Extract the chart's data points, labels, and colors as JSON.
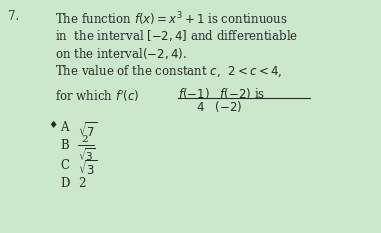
{
  "background_color": "#cce8cc",
  "question_number": "7.",
  "text_color": "#2a2a2a",
  "font_size_main": 8.5,
  "font_size_options": 8.5,
  "lines": [
    "The function $f(x) = x^3 + 1$ is continuous",
    "in  the interval $[-2, 4]$ and differentiable",
    "on the interval$(-2, 4)$.",
    "The value of the constant $c$,  $2 < c < 4$,"
  ],
  "for_which": "for which $f'(c)$",
  "frac_num": "$f(-1)$   $f(-2)$ is",
  "frac_den": "$4$   $(-2)$",
  "bullet": "♦",
  "opt_A_label": "A",
  "opt_A_val": "$\\sqrt{7}$",
  "opt_B_label": "B",
  "opt_B_num": "2",
  "opt_B_den": "$\\sqrt{3}$",
  "opt_C_label": "C",
  "opt_C_val": "$\\sqrt{3}$",
  "opt_D_label": "D",
  "opt_D_val": "2"
}
